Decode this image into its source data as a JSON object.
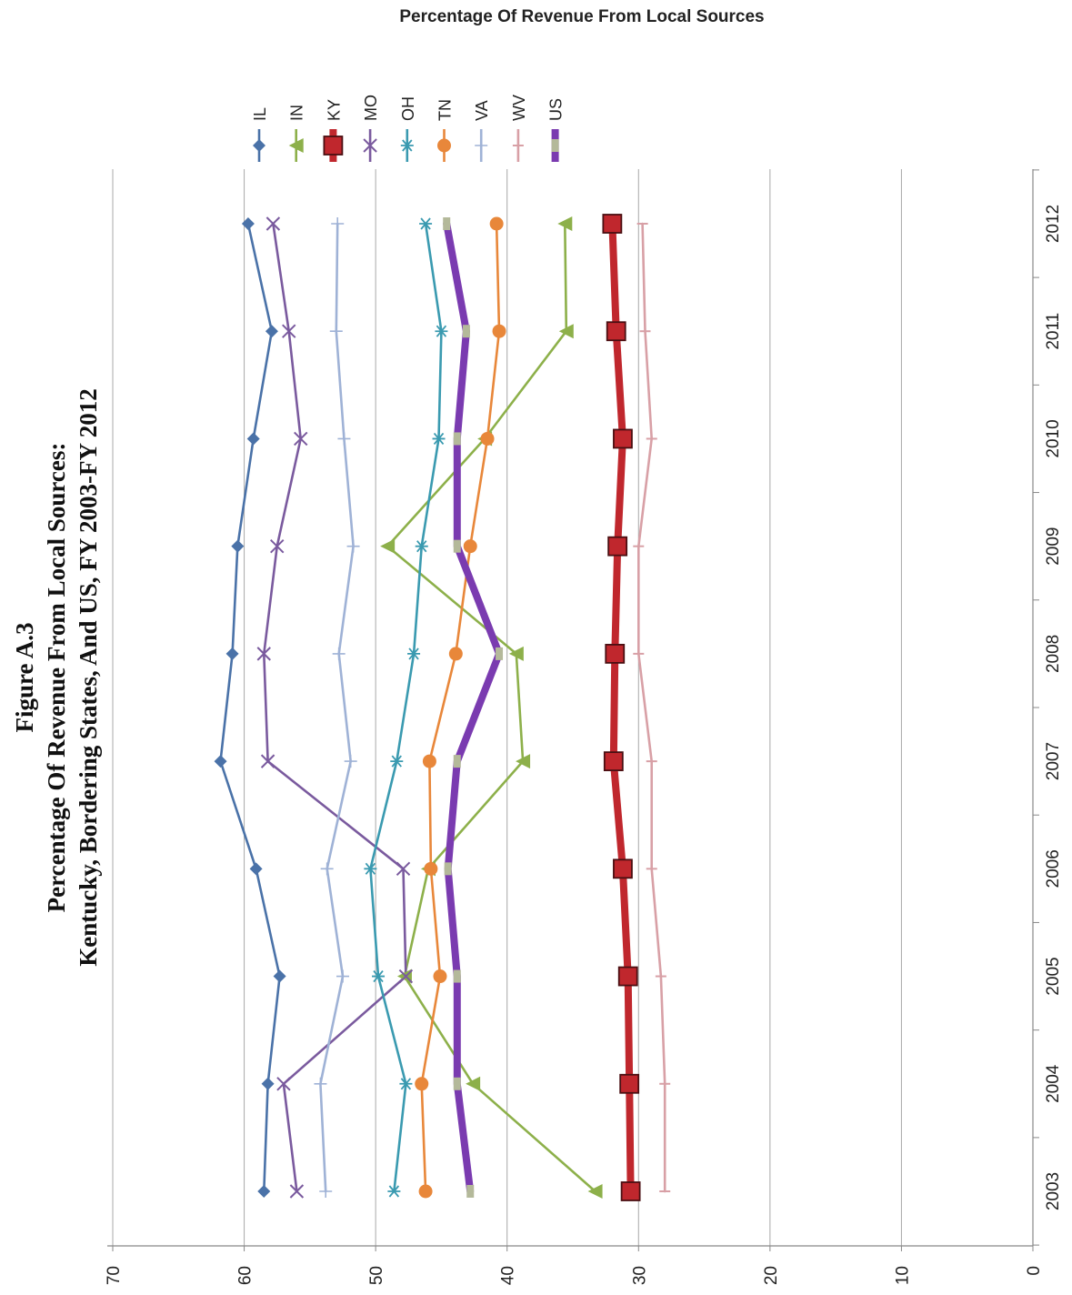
{
  "figure": {
    "line1": "Figure A.3",
    "line2": "Percentage Of Revenue From Local Sources:",
    "line3": "Kentucky, Bordering States, And US, FY 2003-FY 2012"
  },
  "chart_data": {
    "type": "line",
    "title": "Percentage Of Revenue From Local Sources",
    "xlabel": "",
    "ylabel": "",
    "categories": [
      "2003",
      "2004",
      "2005",
      "2006",
      "2007",
      "2008",
      "2009",
      "2010",
      "2011",
      "2012"
    ],
    "ylim": [
      0,
      70
    ],
    "yticks": [
      0,
      10,
      20,
      30,
      40,
      50,
      60,
      70
    ],
    "grid": true,
    "legend_position": "top",
    "orientation": "rotated-90-clockwise",
    "series": [
      {
        "name": "IL",
        "color": "#4A72A8",
        "marker": "diamond",
        "values": [
          58.5,
          58.2,
          57.3,
          59.1,
          61.8,
          60.9,
          60.5,
          59.3,
          57.9,
          59.7
        ]
      },
      {
        "name": "IN",
        "color": "#8DB04A",
        "marker": "triangle",
        "values": [
          33.3,
          42.6,
          47.8,
          46.0,
          38.8,
          39.3,
          49.1,
          41.7,
          35.5,
          35.6
        ]
      },
      {
        "name": "KY",
        "color": "#C0272D",
        "marker": "square",
        "values": [
          30.6,
          30.7,
          30.8,
          31.2,
          31.9,
          31.8,
          31.6,
          31.2,
          31.7,
          32.0
        ]
      },
      {
        "name": "MO",
        "color": "#7A5A9E",
        "marker": "x",
        "values": [
          56.0,
          57.0,
          47.7,
          47.9,
          58.2,
          58.5,
          57.5,
          55.7,
          56.6,
          57.8
        ]
      },
      {
        "name": "OH",
        "color": "#3A9AB0",
        "marker": "asterisk",
        "values": [
          48.6,
          47.7,
          49.8,
          50.4,
          48.4,
          47.1,
          46.5,
          45.2,
          45.0,
          46.2
        ]
      },
      {
        "name": "TN",
        "color": "#E8873A",
        "marker": "circle",
        "values": [
          46.2,
          46.5,
          45.1,
          45.8,
          45.9,
          43.9,
          42.8,
          41.5,
          40.6,
          40.8
        ]
      },
      {
        "name": "VA",
        "color": "#9FB2D6",
        "marker": "plus",
        "values": [
          53.8,
          54.2,
          52.5,
          53.7,
          51.9,
          52.8,
          51.7,
          52.4,
          53.0,
          52.9
        ]
      },
      {
        "name": "WV",
        "color": "#D8A0A6",
        "marker": "dash",
        "values": [
          28.0,
          28.0,
          28.3,
          29.0,
          29.0,
          30.0,
          30.0,
          29.0,
          29.5,
          29.7
        ]
      },
      {
        "name": "US",
        "color": "#7A3BB0",
        "marker": "bar",
        "values": [
          42.8,
          43.8,
          43.8,
          44.5,
          43.8,
          40.6,
          43.8,
          43.8,
          43.1,
          44.6
        ]
      }
    ]
  }
}
